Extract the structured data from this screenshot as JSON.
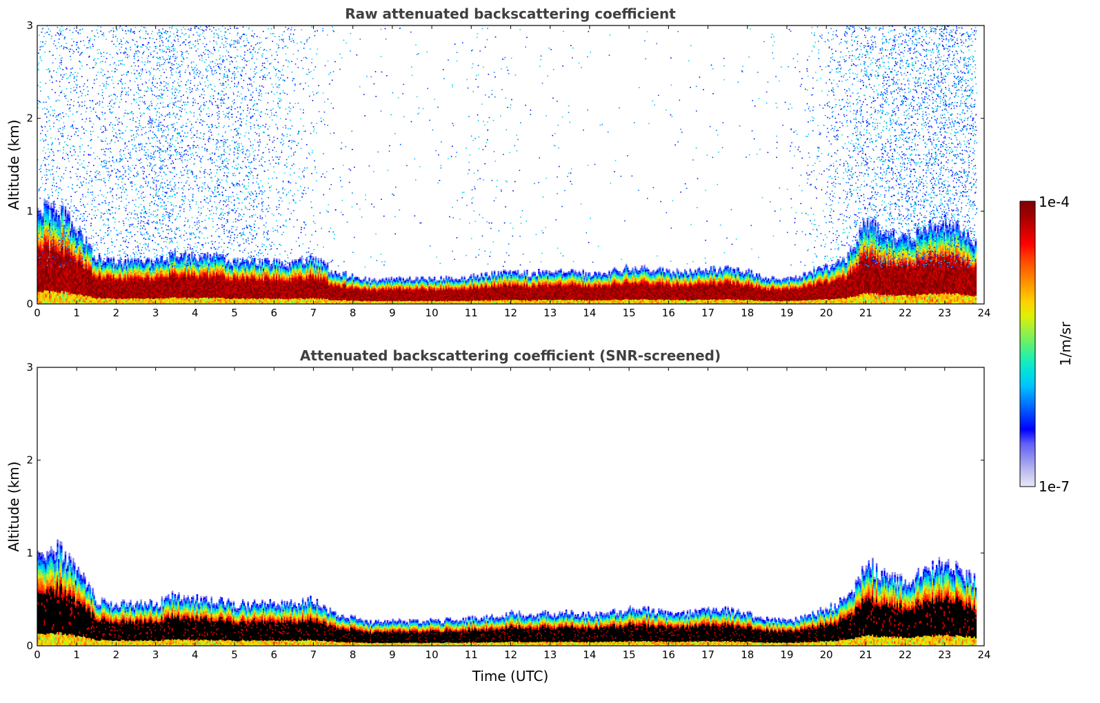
{
  "chart_data": [
    {
      "type": "heatmap",
      "title": "Raw attenuated backscattering coefficient",
      "xlabel": "",
      "ylabel": "Altitude (km)",
      "xlim": [
        0,
        24
      ],
      "ylim": [
        0,
        3
      ],
      "xticks": [
        "0",
        "1",
        "2",
        "3",
        "4",
        "5",
        "6",
        "7",
        "8",
        "9",
        "10",
        "11",
        "12",
        "13",
        "14",
        "15",
        "16",
        "17",
        "18",
        "19",
        "20",
        "21",
        "22",
        "23",
        "24"
      ],
      "yticks": [
        "0",
        "1",
        "2",
        "3"
      ],
      "layer_top_km": {
        "time_utc": [
          0,
          0.5,
          1,
          1.5,
          2,
          2.5,
          3,
          3.5,
          4,
          4.5,
          5,
          5.5,
          6,
          6.5,
          7,
          7.5,
          8,
          8.5,
          9,
          9.5,
          10,
          10.5,
          11,
          11.5,
          12,
          12.5,
          13,
          13.5,
          14,
          14.5,
          15,
          15.5,
          16,
          16.5,
          17,
          17.5,
          18,
          18.5,
          19,
          19.5,
          20,
          20.5,
          21,
          21.5,
          22,
          22.5,
          23,
          23.5,
          23.8
        ],
        "altitude_km": [
          1.0,
          1.05,
          0.8,
          0.5,
          0.45,
          0.45,
          0.45,
          0.55,
          0.5,
          0.5,
          0.45,
          0.45,
          0.45,
          0.45,
          0.5,
          0.35,
          0.3,
          0.25,
          0.27,
          0.27,
          0.27,
          0.28,
          0.3,
          0.32,
          0.35,
          0.33,
          0.35,
          0.35,
          0.33,
          0.35,
          0.4,
          0.38,
          0.35,
          0.35,
          0.38,
          0.38,
          0.35,
          0.28,
          0.27,
          0.33,
          0.4,
          0.5,
          0.9,
          0.75,
          0.7,
          0.8,
          0.9,
          0.75,
          0.7
        ]
      },
      "noise_density_by_hour": [
        0.3,
        0.35,
        0.3,
        0.35,
        0.4,
        0.5,
        0.6,
        0.45,
        0.4,
        0.5,
        0.45,
        0.3,
        0.25,
        0.15,
        0.08,
        0.04,
        0.02,
        0.03,
        0.02,
        0.02,
        0.02,
        0.04,
        0.07,
        0.05,
        0.03,
        0.02,
        0.03,
        0.02,
        0.01,
        0.01,
        0.01,
        0.01,
        0.02,
        0.02,
        0.02,
        0.01,
        0.02,
        0.03,
        0.06,
        0.15,
        0.3,
        0.45,
        0.55,
        0.6,
        0.65,
        0.7,
        0.65,
        0.6
      ]
    },
    {
      "type": "heatmap",
      "title": "Attenuated backscattering coefficient (SNR-screened)",
      "xlabel": "Time (UTC)",
      "ylabel": "Altitude (km)",
      "xlim": [
        0,
        24
      ],
      "ylim": [
        0,
        3
      ],
      "xticks": [
        "0",
        "1",
        "2",
        "3",
        "4",
        "5",
        "6",
        "7",
        "8",
        "9",
        "10",
        "11",
        "12",
        "13",
        "14",
        "15",
        "16",
        "17",
        "18",
        "19",
        "20",
        "21",
        "22",
        "23",
        "24"
      ],
      "yticks": [
        "0",
        "1",
        "2",
        "3"
      ],
      "layer_top_km": {
        "time_utc": [
          0,
          0.5,
          1,
          1.5,
          2,
          2.5,
          3,
          3.5,
          4,
          4.5,
          5,
          5.5,
          6,
          6.5,
          7,
          7.5,
          8,
          8.5,
          9,
          9.5,
          10,
          10.5,
          11,
          11.5,
          12,
          12.5,
          13,
          13.5,
          14,
          14.5,
          15,
          15.5,
          16,
          16.5,
          17,
          17.5,
          18,
          18.5,
          19,
          19.5,
          20,
          20.5,
          21,
          21.5,
          22,
          22.5,
          23,
          23.5,
          23.8
        ],
        "altitude_km": [
          1.0,
          1.05,
          0.8,
          0.5,
          0.45,
          0.45,
          0.45,
          0.55,
          0.5,
          0.5,
          0.45,
          0.45,
          0.45,
          0.45,
          0.5,
          0.35,
          0.3,
          0.25,
          0.27,
          0.27,
          0.27,
          0.28,
          0.3,
          0.32,
          0.35,
          0.33,
          0.35,
          0.35,
          0.33,
          0.35,
          0.4,
          0.38,
          0.35,
          0.35,
          0.38,
          0.38,
          0.35,
          0.28,
          0.27,
          0.33,
          0.4,
          0.5,
          0.9,
          0.75,
          0.7,
          0.8,
          0.9,
          0.75,
          0.7
        ]
      },
      "noise_density_by_hour": []
    }
  ],
  "colorbar": {
    "max_label": "1e-4",
    "min_label": "1e-7",
    "unit_label": "1/m/sr",
    "colormap": [
      "#e8e8f8",
      "#c0c0f0",
      "#9090f0",
      "#6060f8",
      "#0000ff",
      "#0040ff",
      "#0080ff",
      "#00c0ff",
      "#00e0e0",
      "#20f0b0",
      "#60f070",
      "#a0f040",
      "#e0f000",
      "#ffd000",
      "#ffa000",
      "#ff7000",
      "#ff4000",
      "#ff0000",
      "#d00000",
      "#a00000",
      "#800000"
    ]
  }
}
